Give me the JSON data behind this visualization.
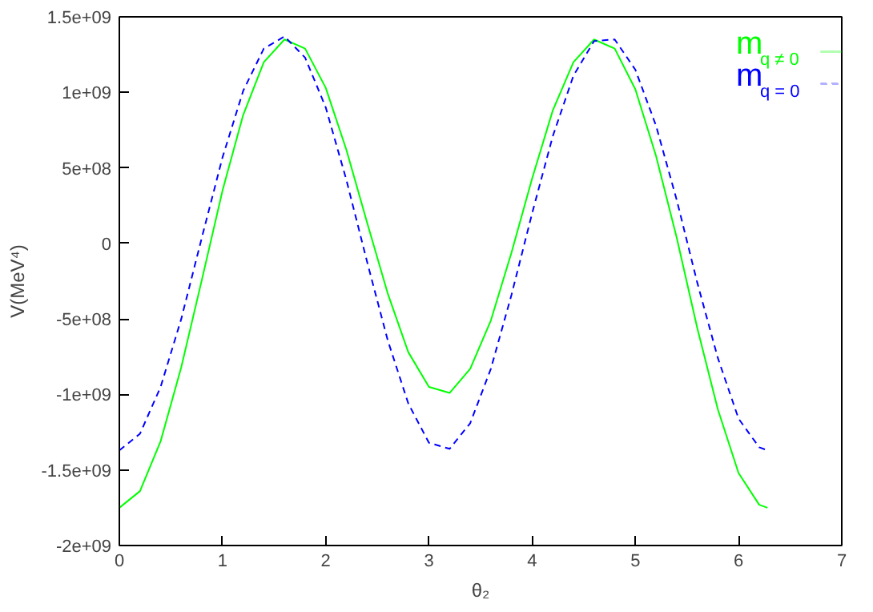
{
  "chart_data": {
    "type": "line",
    "xlabel": "θ₂",
    "ylabel": "V(MeV⁴)",
    "x": [
      0,
      0.2,
      0.4,
      0.6,
      0.8,
      1.0,
      1.2,
      1.4,
      1.6,
      1.8,
      2.0,
      2.2,
      2.4,
      2.6,
      2.8,
      3.0,
      3.2,
      3.4,
      3.6,
      3.8,
      4.0,
      4.2,
      4.4,
      4.6,
      4.8,
      5.0,
      5.2,
      5.4,
      5.6,
      5.8,
      6.0,
      6.2,
      6.28
    ],
    "series": [
      {
        "name": "m$_{q ≠ 0}$",
        "color": "#00ff00",
        "line_style": "solid",
        "values": [
          -1750000000.0,
          -1640000000.0,
          -1310000000.0,
          -820000000.0,
          -240000000.0,
          350000000.0,
          850000000.0,
          1200000000.0,
          1350000000.0,
          1290000000.0,
          1030000000.0,
          620000000.0,
          140000000.0,
          -330000000.0,
          -720000000.0,
          -950000000.0,
          -990000000.0,
          -830000000.0,
          -510000000.0,
          -60000000.0,
          430000000.0,
          880000000.0,
          1200000000.0,
          1350000000.0,
          1290000000.0,
          1020000000.0,
          580000000.0,
          40000000.0,
          -560000000.0,
          -1100000000.0,
          -1520000000.0,
          -1730000000.0,
          -1750000000.0
        ]
      },
      {
        "name": "m$_{q = 0}$",
        "color": "#0000ff",
        "line_style": "dashed",
        "values": [
          -1370000000.0,
          -1260000000.0,
          -950000000.0,
          -500000000.0,
          40000000.0,
          570000000.0,
          1010000000.0,
          1290000000.0,
          1370000000.0,
          1230000000.0,
          900000000.0,
          420000000.0,
          -120000000.0,
          -640000000.0,
          -1060000000.0,
          -1320000000.0,
          -1360000000.0,
          -1190000000.0,
          -830000000.0,
          -340000000.0,
          200000000.0,
          710000000.0,
          1110000000.0,
          1340000000.0,
          1350000000.0,
          1150000000.0,
          780000000.0,
          290000000.0,
          -260000000.0,
          -760000000.0,
          -1160000000.0,
          -1350000000.0,
          -1370000000.0
        ]
      }
    ],
    "xlim": [
      0,
      7
    ],
    "xticks": [
      0,
      1,
      2,
      3,
      4,
      5,
      6,
      7
    ],
    "ylim": [
      -2000000000.0,
      1500000000.0
    ],
    "yticks": [
      {
        "value": -2000000000.0,
        "label": "-2e+09"
      },
      {
        "value": -1500000000.0,
        "label": "-1.5e+09"
      },
      {
        "value": -1000000000.0,
        "label": "-1e+09"
      },
      {
        "value": -500000000.0,
        "label": "-5e+08"
      },
      {
        "value": 0,
        "label": "0"
      },
      {
        "value": 500000000.0,
        "label": "5e+08"
      },
      {
        "value": 1000000000.0,
        "label": "1e+09"
      },
      {
        "value": 1500000000.0,
        "label": "1.5e+09"
      }
    ],
    "grid": false,
    "legend": "top right",
    "marker": "none"
  }
}
